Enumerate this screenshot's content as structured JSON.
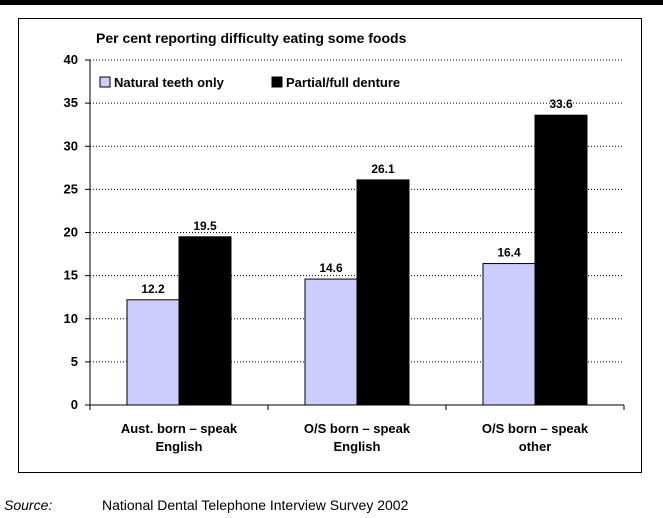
{
  "chart_data": {
    "type": "bar",
    "title": "Per cent reporting difficulty eating some foods",
    "categories": [
      [
        "Aust. born – speak",
        "English"
      ],
      [
        "O/S born – speak",
        "English"
      ],
      [
        "O/S born – speak",
        "other"
      ]
    ],
    "series": [
      {
        "name": "Natural teeth only",
        "color": "#ccccff",
        "values": [
          12.2,
          14.6,
          16.4
        ]
      },
      {
        "name": "Partial/full denture",
        "color": "#000000",
        "values": [
          19.5,
          26.1,
          33.6
        ]
      }
    ],
    "ylim": [
      0,
      40
    ],
    "yticks": [
      "0",
      "5",
      "10",
      "15",
      "20",
      "25",
      "30",
      "35",
      "40"
    ],
    "data_labels": [
      [
        "12.2",
        "14.6",
        "16.4"
      ],
      [
        "19.5",
        "26.1",
        "33.6"
      ]
    ],
    "grid": "dotted horizontal",
    "legend": "top-left"
  },
  "source": {
    "label": "Source:",
    "text": "National Dental Telephone Interview Survey 2002"
  }
}
